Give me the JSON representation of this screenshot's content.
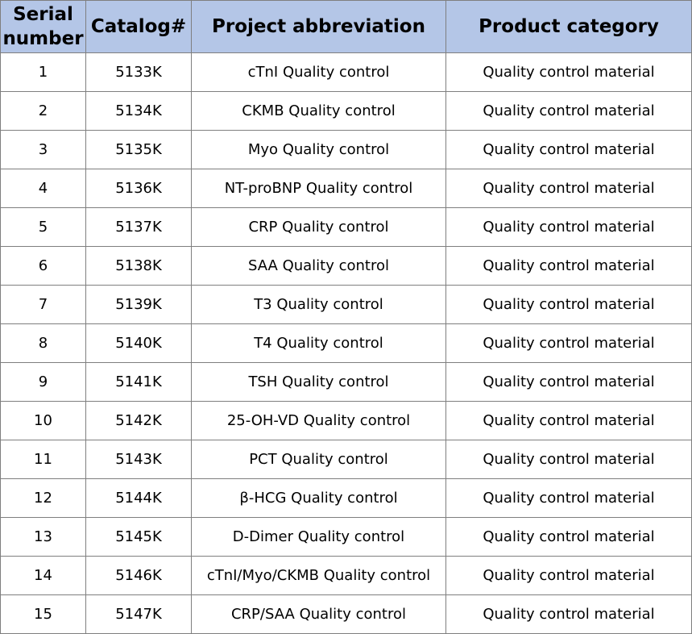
{
  "table": {
    "headers": [
      "Serial\nnumber",
      "Catalog#",
      "Project abbreviation",
      "Product category"
    ],
    "rows": [
      [
        "1",
        "5133K",
        "cTnI Quality control",
        "Quality control material"
      ],
      [
        "2",
        "5134K",
        "CKMB Quality control",
        "Quality control material"
      ],
      [
        "3",
        "5135K",
        "Myo Quality control",
        "Quality control material"
      ],
      [
        "4",
        "5136K",
        "NT-proBNP Quality control",
        "Quality control material"
      ],
      [
        "5",
        "5137K",
        "CRP Quality control",
        "Quality control material"
      ],
      [
        "6",
        "5138K",
        "SAA Quality control",
        "Quality control material"
      ],
      [
        "7",
        "5139K",
        "T3 Quality control",
        "Quality control material"
      ],
      [
        "8",
        "5140K",
        "T4 Quality control",
        "Quality control material"
      ],
      [
        "9",
        "5141K",
        "TSH Quality control",
        "Quality control material"
      ],
      [
        "10",
        "5142K",
        "25-OH-VD Quality control",
        "Quality control material"
      ],
      [
        "11",
        "5143K",
        "PCT Quality control",
        "Quality control material"
      ],
      [
        "12",
        "5144K",
        "β-HCG Quality control",
        "Quality control material"
      ],
      [
        "13",
        "5145K",
        "D-Dimer Quality control",
        "Quality control material"
      ],
      [
        "14",
        "5146K",
        "cTnI/Myo/CKMB Quality control",
        "Quality control material"
      ],
      [
        "15",
        "5147K",
        "CRP/SAA Quality control",
        "Quality control material"
      ]
    ]
  },
  "colors": {
    "header_background": "#b4c6e7",
    "border": "#7f7f7f",
    "text": "#000000"
  }
}
